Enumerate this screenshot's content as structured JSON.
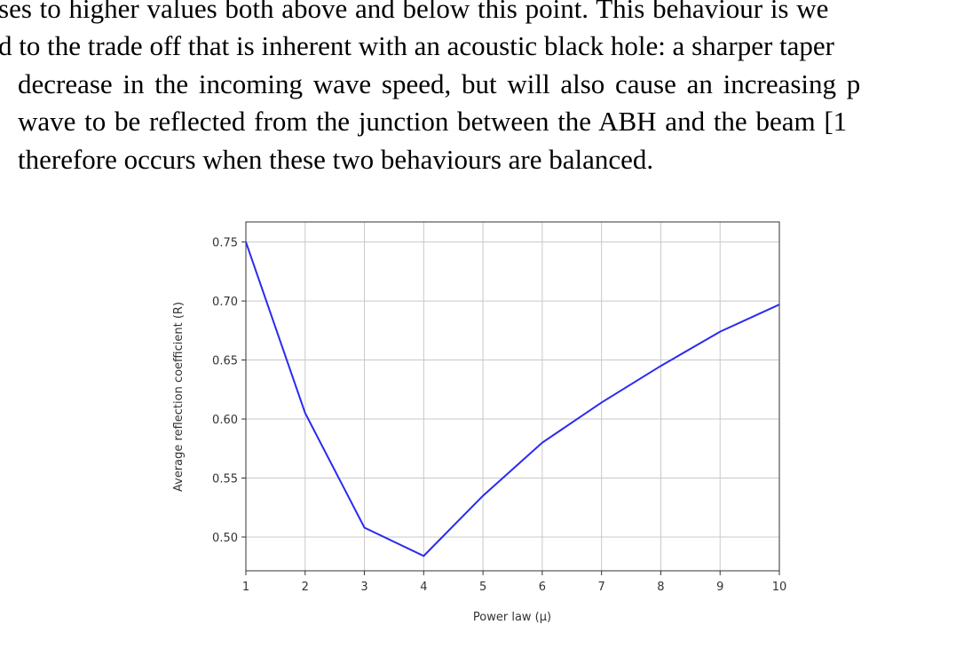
{
  "paragraph": {
    "lines": [
      "ses to higher values both above and below this point. This behaviour is we",
      "d to the trade off that is inherent with an acoustic black hole: a sharper taper",
      "decrease in the incoming wave speed, but will also cause an increasing p",
      "wave to be reflected from the junction between the ABH and the beam [1",
      "therefore occurs when these two behaviours are balanced."
    ]
  },
  "chart_data": {
    "type": "line",
    "x_label": "Power law (μ)",
    "y_label": "Average reflection coefficient (R)",
    "x": [
      1,
      2,
      3,
      4,
      5,
      6,
      7,
      8,
      9,
      10
    ],
    "series": [
      {
        "color": "#2a2af0",
        "values": [
          0.75,
          0.605,
          0.508,
          0.484,
          0.535,
          0.58,
          0.614,
          0.645,
          0.674,
          0.697
        ]
      }
    ],
    "xlim": [
      1,
      10
    ],
    "xticks": [
      1,
      2,
      3,
      4,
      5,
      6,
      7,
      8,
      9,
      10
    ],
    "ylim": [
      0.4714,
      0.767
    ],
    "yticks": [
      {
        "value": 0.5,
        "label": "0.50"
      },
      0.55,
      {
        "value": 0.6,
        "label": "0.60"
      },
      0.65,
      {
        "value": 0.7,
        "label": "0.70"
      },
      0.75
    ],
    "grid": true
  }
}
